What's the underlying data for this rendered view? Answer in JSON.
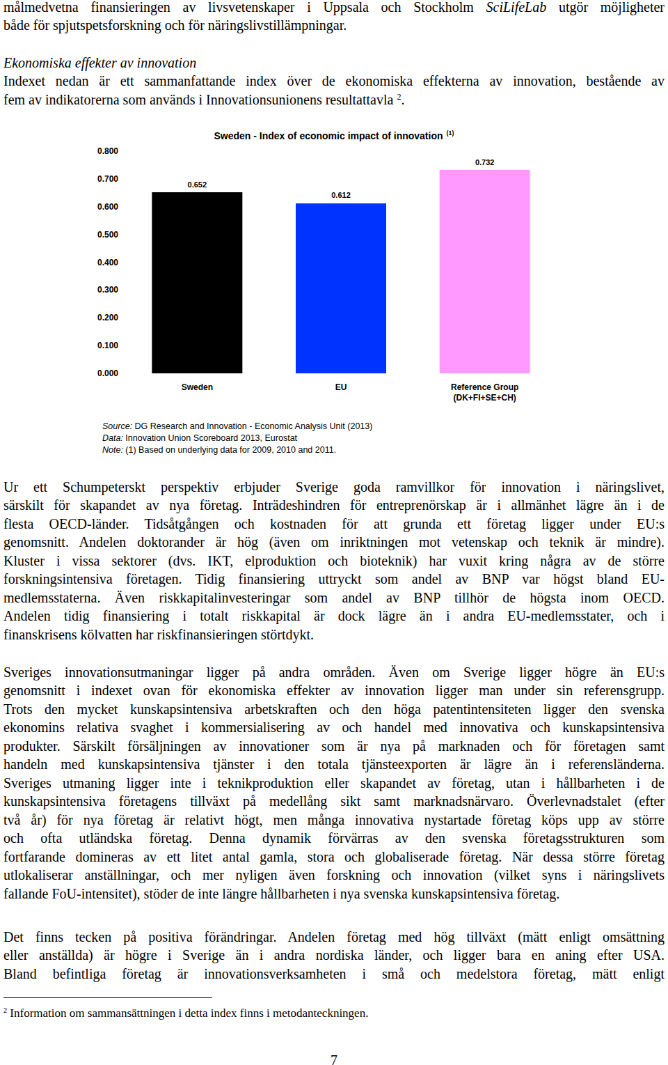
{
  "document": {
    "opening": {
      "lines": [
        [
          {
            "text": "målmedvetna finansieringen av livsvetenskaper i Uppsala och Stockholm "
          },
          {
            "text": "SciLifeLab",
            "italic": true
          },
          {
            "text": " utgör möjligheter"
          }
        ],
        "både för spjutspetsforskning och för näringslivstillämpningar."
      ]
    },
    "heading": "Ekonomiska effekter av innovation",
    "intro": {
      "lines": [
        "Indexet nedan är ett sammanfattande index över de ekonomiska effekterna av innovation, bestående av",
        [
          {
            "text": "fem av indikatorerna som används i Innovationsunionens resultattavla "
          },
          {
            "text": "2",
            "sup": true
          },
          {
            "text": "."
          }
        ]
      ]
    },
    "chart_notes": [
      {
        "label": "Source:",
        "text": "DG Research and Innovation - Economic Analysis Unit (2013)"
      },
      {
        "label": "Data:",
        "text": "Innovation Union Scoreboard 2013, Eurostat"
      },
      {
        "label": "Note:",
        "text": "(1) Based on underlying data for 2009, 2010 and 2011."
      }
    ],
    "body": [
      {
        "lines": [
          "Ur ett Schumpeterskt perspektiv erbjuder Sverige goda ramvillkor för innovation i näringslivet,",
          "särskilt för skapandet av nya företag. Inträdeshindren för entreprenörskap är i allmänhet lägre än i de",
          "flesta OECD-länder. Tidsåtgången och kostnaden för att grunda ett företag ligger under EU:s",
          "genomsnitt. Andelen doktorander är hög (även om inriktningen mot vetenskap och teknik är mindre).",
          "Kluster i vissa sektorer (dvs. IKT, elproduktion och bioteknik) har vuxit kring några av de större",
          "forskningsintensiva företagen. Tidig finansiering uttryckt som andel av BNP var högst bland EU-",
          "medlemsstaterna. Även riskkapitalinvesteringar som andel av BNP tillhör de högsta inom OECD.",
          "Andelen tidig finansiering i totalt riskkapital är dock lägre än i andra EU-medlemsstater, och i",
          "finanskrisens kölvatten har riskfinansieringen störtdykt."
        ]
      },
      {
        "lines": [
          "Sveriges innovationsutmaningar ligger på andra områden. Även om Sverige ligger högre än EU:s",
          "genomsnitt i indexet ovan för ekonomiska effekter av innovation ligger man under sin referensgrupp.",
          "Trots den mycket kunskapsintensiva arbetskraften och den höga patentintensiteten ligger den svenska",
          "ekonomins relativa svaghet i kommersialisering av och handel med innovativa och kunskapsintensiva",
          "produkter. Särskilt försäljningen av innovationer som är nya på marknaden och för företagen samt",
          "handeln med kunskapsintensiva tjänster i den totala tjänsteexporten är lägre än i referensländerna.",
          "Sveriges utmaning ligger inte i teknikproduktion eller skapandet av företag, utan i hållbarheten i de",
          "kunskapsintensiva företagens tillväxt på medellång sikt samt marknadsnärvaro. Överlevnadstalet (efter",
          "två år) för nya företag är relativt högt, men många innovativa nystartade företag köps upp av större",
          "och ofta utländska företag. Denna dynamik förvärras av den svenska företagsstrukturen som",
          "fortfarande domineras av ett litet antal gamla, stora och globaliserade företag. När dessa större företag",
          "utlokaliserar anställningar, och mer nyligen även forskning och innovation (vilket syns i näringslivets",
          "fallande FoU-intensitet), stöder de inte längre hållbarheten i nya svenska kunskapsintensiva företag."
        ]
      },
      {
        "lines": [
          "Det finns tecken på positiva förändringar. Andelen företag med hög tillväxt (mätt enligt omsättning",
          "eller anställda) är högre i Sverige än i andra nordiska länder, och ligger bara en aning efter USA.",
          "Bland befintliga företag är innovationsverksamheten i små och medelstora företag, mätt enligt"
        ]
      }
    ],
    "footnote": {
      "mark": "2",
      "text": "Information om sammansättningen i detta index finns i metodanteckningen."
    },
    "page_number": 7
  },
  "chart_data": {
    "type": "bar",
    "title": "Sweden - Index of economic impact of innovation",
    "title_note": "(1)",
    "categories": [
      "Sweden",
      "EU",
      "Reference Group\n(DK+FI+SE+CH)"
    ],
    "values": [
      0.652,
      0.612,
      0.732
    ],
    "colors": [
      "#000000",
      "#0033ff",
      "#ff99ff"
    ],
    "ylim": [
      0,
      0.8
    ],
    "yticks": [
      {
        "value": 0,
        "label": "0.000"
      },
      {
        "value": 0.1,
        "label": "0.100"
      },
      {
        "value": 0.2,
        "label": "0.200"
      },
      {
        "value": 0.3,
        "label": "0.300"
      },
      {
        "value": 0.4,
        "label": "0.400"
      },
      {
        "value": 0.5,
        "label": "0.500"
      },
      {
        "value": 0.6,
        "label": "0.600"
      },
      {
        "value": 0.7,
        "label": "0.700"
      },
      {
        "value": 0.8,
        "label": "0.800"
      }
    ],
    "grid": false,
    "data_labels": true
  }
}
